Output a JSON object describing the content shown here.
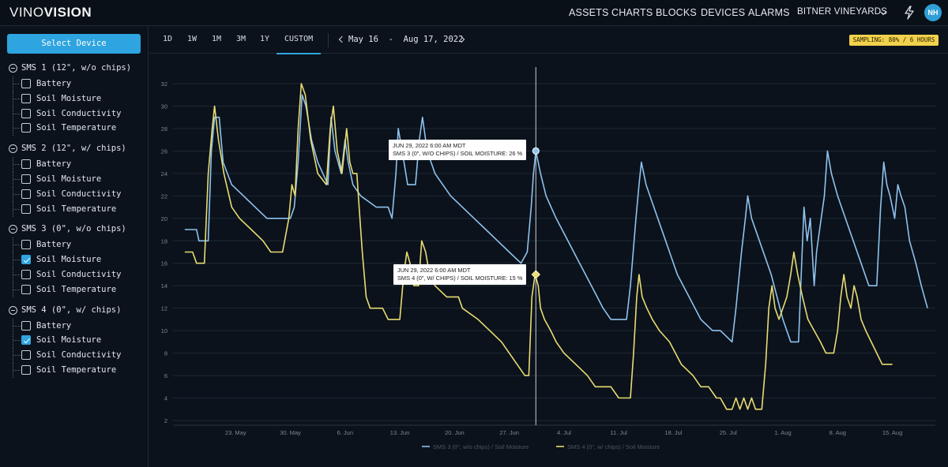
{
  "app": {
    "logo_a": "VINO",
    "logo_b": "VISION",
    "nav": [
      "ASSETS",
      "CHARTS",
      "BLOCKS",
      "DEVICES",
      "ALARMS"
    ],
    "vineyard": "BITNER VINEYARDS",
    "user_initials": "NH"
  },
  "sidebar": {
    "select_label": "Select Device",
    "groups": [
      {
        "label": "SMS 1 (12\", w/o chips)",
        "items": [
          {
            "label": "Battery",
            "checked": false
          },
          {
            "label": "Soil Moisture",
            "checked": false
          },
          {
            "label": "Soil Conductivity",
            "checked": false
          },
          {
            "label": "Soil Temperature",
            "checked": false
          }
        ]
      },
      {
        "label": "SMS 2 (12\", w/ chips)",
        "items": [
          {
            "label": "Battery",
            "checked": false
          },
          {
            "label": "Soil Moisture",
            "checked": false
          },
          {
            "label": "Soil Conductivity",
            "checked": false
          },
          {
            "label": "Soil Temperature",
            "checked": false
          }
        ]
      },
      {
        "label": "SMS 3 (0\", w/o chips)",
        "items": [
          {
            "label": "Battery",
            "checked": false
          },
          {
            "label": "Soil Moisture",
            "checked": true
          },
          {
            "label": "Soil Conductivity",
            "checked": false
          },
          {
            "label": "Soil Temperature",
            "checked": false
          }
        ]
      },
      {
        "label": "SMS 4 (0\", w/ chips)",
        "items": [
          {
            "label": "Battery",
            "checked": false
          },
          {
            "label": "Soil Moisture",
            "checked": true
          },
          {
            "label": "Soil Conductivity",
            "checked": false
          },
          {
            "label": "Soil Temperature",
            "checked": false
          }
        ]
      }
    ]
  },
  "toolbar": {
    "ranges": [
      "1D",
      "1W",
      "1M",
      "3M",
      "1Y",
      "CUSTOM"
    ],
    "active_range": "CUSTOM",
    "date_start": "May 16",
    "date_sep": "-",
    "date_end": "Aug 17, 2022",
    "sampling": "SAMPLING: 80% / 6 HOURS"
  },
  "colors": {
    "series1": "#8ec2ee",
    "series2": "#e8dc72",
    "accent": "#2ea4e0",
    "badge": "#f2d14c"
  },
  "chart_data": {
    "type": "line",
    "title": "",
    "xlabel": "",
    "ylabel": "",
    "ylim": [
      2,
      32
    ],
    "yticks": [
      2,
      4,
      6,
      8,
      10,
      12,
      14,
      16,
      18,
      20,
      22,
      24,
      26,
      28,
      30,
      32
    ],
    "x_day_range": [
      0,
      93
    ],
    "x_ticks": [
      {
        "day": 7,
        "label": "23. May"
      },
      {
        "day": 14,
        "label": "30. May"
      },
      {
        "day": 21,
        "label": "6. Jun"
      },
      {
        "day": 28,
        "label": "13. Jun"
      },
      {
        "day": 35,
        "label": "20. Jun"
      },
      {
        "day": 42,
        "label": "27. Jun"
      },
      {
        "day": 49,
        "label": "4. Jul"
      },
      {
        "day": 56,
        "label": "11. Jul"
      },
      {
        "day": 63,
        "label": "18. Jul"
      },
      {
        "day": 70,
        "label": "25. Jul"
      },
      {
        "day": 77,
        "label": "1. Aug"
      },
      {
        "day": 84,
        "label": "8. Aug"
      },
      {
        "day": 91,
        "label": "15. Aug"
      }
    ],
    "series": [
      {
        "name": "SMS 3 (0\", w/o chips) / Soil Moisture",
        "points": [
          [
            0.5,
            19
          ],
          [
            2.0,
            19
          ],
          [
            2.3,
            18
          ],
          [
            3.5,
            18
          ],
          [
            3.9,
            26
          ],
          [
            4.3,
            29
          ],
          [
            4.9,
            29
          ],
          [
            5.4,
            25
          ],
          [
            6.5,
            23
          ],
          [
            8.0,
            22
          ],
          [
            9.5,
            21
          ],
          [
            11.0,
            20
          ],
          [
            14.0,
            20
          ],
          [
            14.5,
            21
          ],
          [
            15.0,
            25
          ],
          [
            15.5,
            31
          ],
          [
            16.0,
            30
          ],
          [
            16.7,
            27
          ],
          [
            17.5,
            25
          ],
          [
            18.8,
            23
          ],
          [
            19.2,
            29
          ],
          [
            19.7,
            26
          ],
          [
            20.5,
            24
          ],
          [
            21.0,
            27
          ],
          [
            21.4,
            25
          ],
          [
            22.0,
            23
          ],
          [
            23.0,
            22
          ],
          [
            25.0,
            21
          ],
          [
            26.5,
            21
          ],
          [
            27.0,
            20
          ],
          [
            27.5,
            24
          ],
          [
            27.8,
            28
          ],
          [
            28.3,
            26
          ],
          [
            29.0,
            23
          ],
          [
            30.0,
            23
          ],
          [
            30.5,
            27
          ],
          [
            30.9,
            29
          ],
          [
            31.5,
            26
          ],
          [
            32.5,
            24
          ],
          [
            34.5,
            22
          ],
          [
            36.0,
            21
          ],
          [
            37.5,
            20
          ],
          [
            39.0,
            19
          ],
          [
            40.5,
            18
          ],
          [
            42.0,
            17
          ],
          [
            43.5,
            16
          ],
          [
            44.3,
            17
          ],
          [
            44.8,
            21
          ],
          [
            45.1,
            24
          ],
          [
            45.4,
            26
          ],
          [
            46.0,
            24
          ],
          [
            46.7,
            22
          ],
          [
            48.0,
            20
          ],
          [
            49.5,
            18
          ],
          [
            51.0,
            16
          ],
          [
            52.5,
            14
          ],
          [
            54.0,
            12
          ],
          [
            55.0,
            11
          ],
          [
            57.0,
            11
          ],
          [
            57.5,
            14
          ],
          [
            58.2,
            20
          ],
          [
            58.6,
            23
          ],
          [
            58.9,
            25
          ],
          [
            59.5,
            23
          ],
          [
            60.5,
            21
          ],
          [
            62.0,
            18
          ],
          [
            63.5,
            15
          ],
          [
            65.0,
            13
          ],
          [
            66.5,
            11
          ],
          [
            68.0,
            10
          ],
          [
            69.0,
            10
          ],
          [
            70.5,
            9
          ],
          [
            71.0,
            12
          ],
          [
            71.7,
            17
          ],
          [
            72.2,
            20
          ],
          [
            72.5,
            22
          ],
          [
            73.0,
            20
          ],
          [
            74.0,
            18
          ],
          [
            75.5,
            15
          ],
          [
            77.0,
            11
          ],
          [
            78.0,
            9
          ],
          [
            79.0,
            9
          ],
          [
            79.4,
            16
          ],
          [
            79.7,
            21
          ],
          [
            80.1,
            18
          ],
          [
            80.5,
            20
          ],
          [
            81.0,
            14
          ],
          [
            81.3,
            17
          ],
          [
            81.7,
            19
          ],
          [
            82.3,
            22
          ],
          [
            82.7,
            26
          ],
          [
            83.2,
            24
          ],
          [
            84.0,
            22
          ],
          [
            85.5,
            19
          ],
          [
            87.0,
            16
          ],
          [
            88.0,
            14
          ],
          [
            89.0,
            14
          ],
          [
            89.5,
            21
          ],
          [
            89.9,
            25
          ],
          [
            90.3,
            23
          ],
          [
            90.7,
            22
          ],
          [
            91.0,
            21
          ],
          [
            91.3,
            20
          ],
          [
            91.7,
            23
          ],
          [
            92.1,
            22
          ],
          [
            92.6,
            21
          ],
          [
            93.2,
            18
          ],
          [
            94.0,
            16
          ],
          [
            94.7,
            14
          ],
          [
            95.5,
            12
          ]
        ]
      },
      {
        "name": "SMS 4 (0\", w/ chips) / Soil Moisture",
        "points": [
          [
            0.5,
            17
          ],
          [
            1.5,
            17
          ],
          [
            2.0,
            16
          ],
          [
            3.0,
            16
          ],
          [
            3.5,
            24
          ],
          [
            4.0,
            28
          ],
          [
            4.3,
            30
          ],
          [
            4.8,
            27
          ],
          [
            5.5,
            24
          ],
          [
            6.5,
            21
          ],
          [
            7.5,
            20
          ],
          [
            9.0,
            19
          ],
          [
            10.5,
            18
          ],
          [
            11.5,
            17
          ],
          [
            13.0,
            17
          ],
          [
            13.8,
            20
          ],
          [
            14.2,
            23
          ],
          [
            14.6,
            22
          ],
          [
            15.0,
            28
          ],
          [
            15.4,
            32
          ],
          [
            15.9,
            31
          ],
          [
            16.6,
            27
          ],
          [
            17.5,
            24
          ],
          [
            18.6,
            23
          ],
          [
            19.1,
            28
          ],
          [
            19.5,
            30
          ],
          [
            20.0,
            26
          ],
          [
            20.6,
            24
          ],
          [
            21.2,
            28
          ],
          [
            21.6,
            25
          ],
          [
            22.0,
            24
          ],
          [
            22.5,
            24
          ],
          [
            22.8,
            21
          ],
          [
            23.2,
            17
          ],
          [
            23.7,
            13
          ],
          [
            24.2,
            12
          ],
          [
            25.8,
            12
          ],
          [
            26.5,
            11
          ],
          [
            28.0,
            11
          ],
          [
            28.5,
            15
          ],
          [
            28.9,
            17
          ],
          [
            29.3,
            16
          ],
          [
            29.8,
            14
          ],
          [
            30.4,
            14
          ],
          [
            30.8,
            18
          ],
          [
            31.3,
            17
          ],
          [
            31.8,
            15
          ],
          [
            32.5,
            14
          ],
          [
            34.0,
            13
          ],
          [
            35.5,
            13
          ],
          [
            36.0,
            12
          ],
          [
            38.0,
            11
          ],
          [
            39.5,
            10
          ],
          [
            41.0,
            9
          ],
          [
            42.0,
            8
          ],
          [
            43.0,
            7
          ],
          [
            44.0,
            6
          ],
          [
            44.5,
            6
          ],
          [
            44.9,
            13
          ],
          [
            45.3,
            15
          ],
          [
            45.7,
            14
          ],
          [
            46.0,
            12
          ],
          [
            46.5,
            11
          ],
          [
            47.3,
            10
          ],
          [
            48.0,
            9
          ],
          [
            49.0,
            8
          ],
          [
            50.5,
            7
          ],
          [
            52.0,
            6
          ],
          [
            53.0,
            5
          ],
          [
            55.0,
            5
          ],
          [
            56.0,
            4
          ],
          [
            57.5,
            4
          ],
          [
            57.9,
            8
          ],
          [
            58.3,
            13
          ],
          [
            58.6,
            15
          ],
          [
            59.0,
            13
          ],
          [
            59.6,
            12
          ],
          [
            60.3,
            11
          ],
          [
            61.2,
            10
          ],
          [
            62.5,
            9
          ],
          [
            64.0,
            7
          ],
          [
            65.5,
            6
          ],
          [
            66.5,
            5
          ],
          [
            67.5,
            5
          ],
          [
            68.5,
            4
          ],
          [
            69.0,
            4
          ],
          [
            69.8,
            3
          ],
          [
            70.5,
            3
          ],
          [
            71.0,
            4
          ],
          [
            71.5,
            3
          ],
          [
            72.0,
            4
          ],
          [
            72.5,
            3
          ],
          [
            73.0,
            4
          ],
          [
            73.5,
            3
          ],
          [
            74.3,
            3
          ],
          [
            74.8,
            7
          ],
          [
            75.2,
            12
          ],
          [
            75.6,
            14
          ],
          [
            76.0,
            12
          ],
          [
            76.5,
            11
          ],
          [
            77.0,
            12
          ],
          [
            77.5,
            13
          ],
          [
            78.0,
            15
          ],
          [
            78.4,
            17
          ],
          [
            78.9,
            15
          ],
          [
            79.5,
            13
          ],
          [
            80.2,
            11
          ],
          [
            81.0,
            10
          ],
          [
            81.8,
            9
          ],
          [
            82.5,
            8
          ],
          [
            83.5,
            8
          ],
          [
            84.0,
            10
          ],
          [
            84.4,
            13
          ],
          [
            84.8,
            15
          ],
          [
            85.2,
            13
          ],
          [
            85.7,
            12
          ],
          [
            86.1,
            14
          ],
          [
            86.5,
            13
          ],
          [
            87.0,
            11
          ],
          [
            87.6,
            10
          ],
          [
            88.3,
            9
          ],
          [
            89.0,
            8
          ],
          [
            89.7,
            7
          ],
          [
            91.0,
            7
          ]
        ]
      }
    ],
    "hover_day": 45.4,
    "tooltips": [
      {
        "title": "JUN 29, 2022 6:00 AM MDT",
        "text": "SMS 3 (0\", W/O CHIPS) / SOIL MOISTURE: 26 %",
        "value": 26
      },
      {
        "title": "JUN 29, 2022 6:00 AM MDT",
        "text": "SMS 4 (0\", W/ CHIPS) / SOIL MOISTURE: 15 %",
        "value": 15
      }
    ],
    "legend": [
      {
        "label": "SMS 3 (0\", w/o chips) / Soil Moisture"
      },
      {
        "label": "SMS 4 (0\", w/ chips) / Soil Moisture"
      }
    ]
  }
}
